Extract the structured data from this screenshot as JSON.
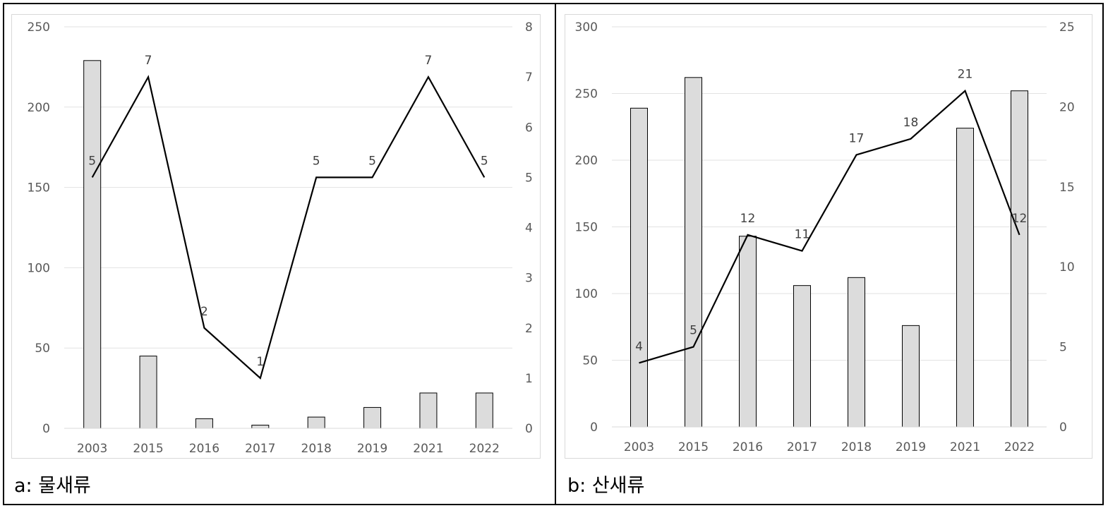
{
  "chart_data": [
    {
      "type": "bar+line",
      "caption": "a: 물새류",
      "categories": [
        "2003",
        "2015",
        "2016",
        "2017",
        "2018",
        "2019",
        "2021",
        "2022"
      ],
      "bar_values": [
        229,
        45,
        6,
        2,
        7,
        13,
        22,
        22
      ],
      "line_values": [
        5,
        7,
        2,
        1,
        5,
        5,
        7,
        5
      ],
      "y_left": {
        "min": 0,
        "max": 250,
        "ticks": [
          "0",
          "50",
          "100",
          "150",
          "200",
          "250"
        ]
      },
      "y_right": {
        "min": 0,
        "max": 8,
        "ticks": [
          "0",
          "1",
          "2",
          "3",
          "4",
          "5",
          "6",
          "7",
          "8"
        ]
      },
      "bar_color": "#dcdcdc",
      "line_color": "#000000",
      "grid": true,
      "legend": "none"
    },
    {
      "type": "bar+line",
      "caption": "b: 산새류",
      "categories": [
        "2003",
        "2015",
        "2016",
        "2017",
        "2018",
        "2019",
        "2021",
        "2022"
      ],
      "bar_values": [
        239,
        262,
        143,
        106,
        112,
        76,
        224,
        252
      ],
      "line_values": [
        4,
        5,
        12,
        11,
        17,
        18,
        21,
        12
      ],
      "y_left": {
        "min": 0,
        "max": 300,
        "ticks": [
          "0",
          "50",
          "100",
          "150",
          "200",
          "250",
          "300"
        ]
      },
      "y_right": {
        "min": 0,
        "max": 25,
        "ticks": [
          "0",
          "5",
          "10",
          "15",
          "20",
          "25"
        ]
      },
      "bar_color": "#dcdcdc",
      "line_color": "#000000",
      "grid": true,
      "legend": "none"
    }
  ]
}
